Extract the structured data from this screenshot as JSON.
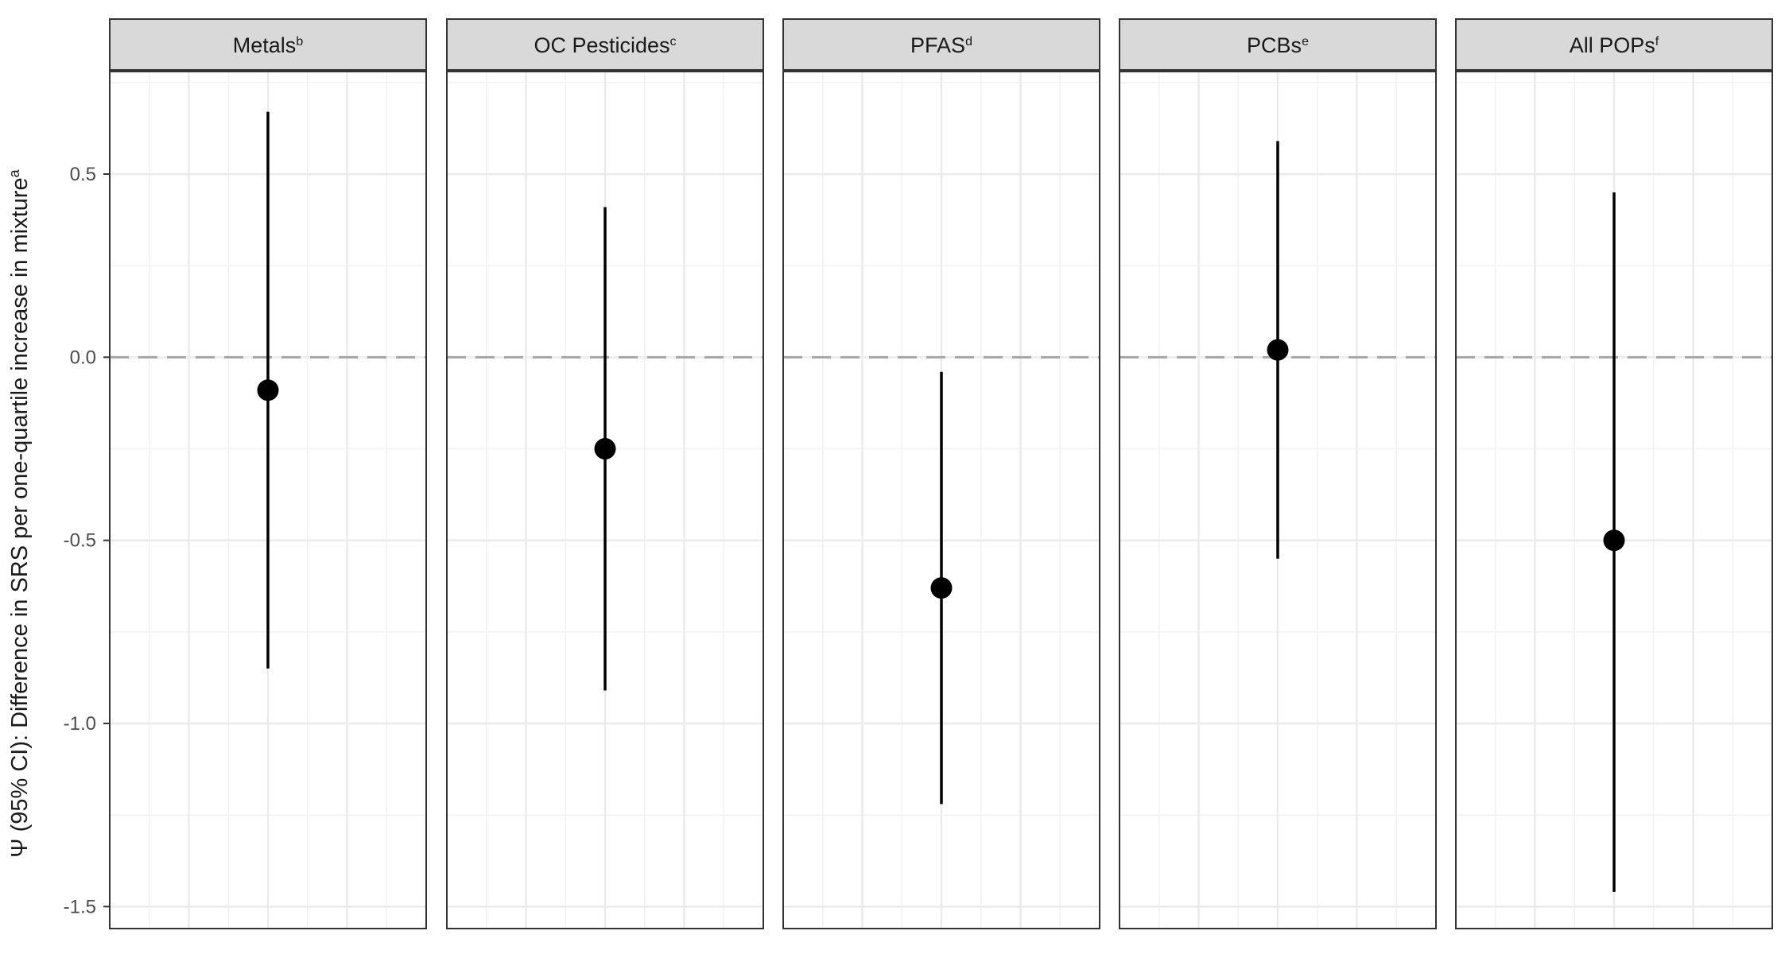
{
  "chart_data": {
    "type": "scatter",
    "style": "point-range (estimate with 95% CI error bars), faceted",
    "ylabel": "Ψ (95% CI): Difference in SRS per one-quartile increase in mixture",
    "ylabel_superscript": "a",
    "xlabel": "",
    "ylim": [
      -1.56,
      0.78
    ],
    "y_ticks": [
      0.5,
      0.0,
      -0.5,
      -1.0,
      -1.5
    ],
    "y_tick_labels": [
      "0.5",
      "0.0",
      "-0.5",
      "-1.0",
      "-1.5"
    ],
    "reference_line": {
      "y": 0,
      "style": "dashed",
      "color": "#a6a6a6"
    },
    "grid": true,
    "colors": {
      "point": "#000000",
      "strip_fill": "#d9d9d9",
      "grid": "#ebebeb",
      "panel_border": "#333333"
    },
    "panels": [
      {
        "label": "Metals",
        "superscript": "b",
        "estimate": -0.09,
        "ci_lower": -0.85,
        "ci_upper": 0.67
      },
      {
        "label": "OC Pesticides",
        "superscript": "c",
        "estimate": -0.25,
        "ci_lower": -0.91,
        "ci_upper": 0.41
      },
      {
        "label": "PFAS",
        "superscript": "d",
        "estimate": -0.63,
        "ci_lower": -1.22,
        "ci_upper": -0.04
      },
      {
        "label": "PCBs",
        "superscript": "e",
        "estimate": 0.02,
        "ci_lower": -0.55,
        "ci_upper": 0.59
      },
      {
        "label": "All POPs",
        "superscript": "f",
        "estimate": -0.5,
        "ci_lower": -1.46,
        "ci_upper": 0.45
      }
    ]
  }
}
